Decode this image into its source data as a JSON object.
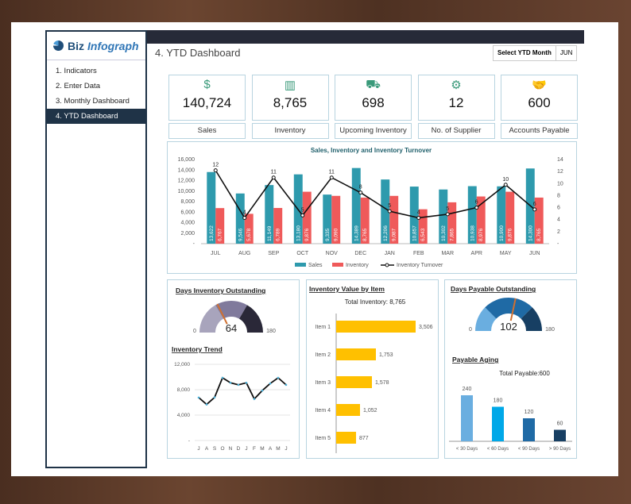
{
  "logo": {
    "brand": "Biz",
    "brand2": "Infograph"
  },
  "sidebar": {
    "items": [
      {
        "label": "1. Indicators"
      },
      {
        "label": "2. Enter Data"
      },
      {
        "label": "3. Monthly Dashboard"
      },
      {
        "label": "4. YTD Dashboard"
      }
    ]
  },
  "header": {
    "title": "4. YTD Dashboard",
    "select_label": "Select YTD Month",
    "select_value": "JUN"
  },
  "kpis": [
    {
      "value": "140,724",
      "label": "Sales",
      "icon": "money-icon"
    },
    {
      "value": "8,765",
      "label": "Inventory",
      "icon": "shelf-icon"
    },
    {
      "value": "698",
      "label": "Upcoming Inventory",
      "icon": "cart-icon"
    },
    {
      "value": "12",
      "label": "No. of Supplier",
      "icon": "supplier-icon"
    },
    {
      "value": "600",
      "label": "Accounts Payable",
      "icon": "handshake-icon"
    }
  ],
  "chart_data": [
    {
      "type": "bar",
      "title": "Sales, Inventory and Inventory Turnover",
      "categories": [
        "JUL",
        "AUG",
        "SEP",
        "OCT",
        "NOV",
        "DEC",
        "JAN",
        "FEB",
        "MAR",
        "APR",
        "MAY",
        "JUN"
      ],
      "series": [
        {
          "name": "Sales",
          "color": "#2e9aad",
          "values": [
            13622,
            9546,
            11149,
            13180,
            9335,
            14389,
            12206,
            10857,
            10302,
            10938,
            10900,
            14300
          ],
          "labels": [
            "13,622",
            "9,546",
            "11,149",
            "13,180",
            "9,335",
            "14,389",
            "12,206",
            "10,857",
            "10,302",
            "10,938",
            "10,900",
            "14,300"
          ]
        },
        {
          "name": "Inventory",
          "color": "#ef5a5a",
          "values": [
            6767,
            5678,
            6789,
            9876,
            9090,
            8765,
            9087,
            6543,
            7865,
            8976,
            9876,
            8765
          ],
          "labels": [
            "6,767",
            "5,678",
            "6,789",
            "9,876",
            "9,090",
            "8,765",
            "9,087",
            "6,543",
            "7,865",
            "8,976",
            "9,876",
            "8,765"
          ]
        },
        {
          "name": "Inventory Turnover",
          "type": "line",
          "axis": "right",
          "values": [
            12.2,
            4.3,
            11,
            4.7,
            11,
            8.5,
            5.4,
            4.3,
            4.9,
            6,
            9.8,
            5.7
          ],
          "labels": [
            "12",
            "4",
            "11",
            "5",
            "11",
            "8",
            "5",
            "4",
            "5",
            "6",
            "10",
            "6"
          ]
        }
      ],
      "yticks": [
        "-",
        "2,000",
        "4,000",
        "6,000",
        "8,000",
        "10,000",
        "12,000",
        "14,000",
        "16,000"
      ],
      "ylim": [
        0,
        16000
      ],
      "y2ticks": [
        "-",
        "2",
        "4",
        "6",
        "8",
        "10",
        "12",
        "14"
      ],
      "y2lim": [
        0,
        14
      ],
      "legend": "bottom"
    },
    {
      "type": "gauge",
      "title": "Days Inventory Outstanding",
      "value": 64,
      "min_label": "0",
      "max_label": "180",
      "min": 0,
      "max": 180
    },
    {
      "type": "line",
      "title": "Inventory Trend",
      "categories": [
        "J",
        "A",
        "S",
        "O",
        "N",
        "D",
        "J",
        "F",
        "M",
        "A",
        "M",
        "J"
      ],
      "values": [
        6767,
        5678,
        6789,
        9876,
        9090,
        8765,
        9087,
        6543,
        7865,
        8976,
        9876,
        8765
      ],
      "yticks": [
        "-",
        "4,000",
        "8,000",
        "12,000"
      ],
      "ylim": [
        0,
        12000
      ]
    },
    {
      "type": "bar",
      "orientation": "horizontal",
      "title": "Inventory Value by Item",
      "subtitle": "Total Inventory: 8,765",
      "categories": [
        "Item 1",
        "Item 2",
        "Item 3",
        "Item 4",
        "Item 5"
      ],
      "values": [
        3506,
        1753,
        1578,
        1052,
        877
      ],
      "labels": [
        "3,506",
        "1,753",
        "1,578",
        "1,052",
        "877"
      ],
      "color": "#ffc000"
    },
    {
      "type": "gauge",
      "title": "Days Payable Outstanding",
      "value": 102,
      "min_label": "0",
      "max_label": "180",
      "min": 0,
      "max": 180
    },
    {
      "type": "bar",
      "title": "Payable Aging",
      "subtitle": "Total Payable:600",
      "categories": [
        "< 30 Days",
        "< 60 Days",
        "< 90 Days",
        "> 90 Days"
      ],
      "values": [
        240,
        180,
        120,
        60
      ],
      "labels": [
        "240",
        "180",
        "120",
        "60"
      ],
      "colors": [
        "#6aaee0",
        "#00a8e8",
        "#1f6aa5",
        "#173f63"
      ]
    }
  ]
}
